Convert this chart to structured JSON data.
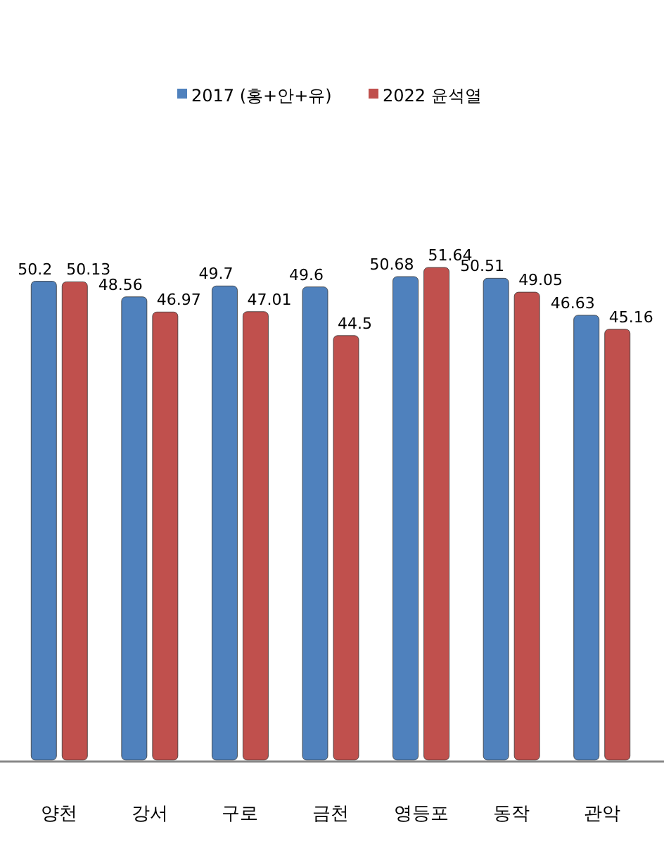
{
  "chart_data": {
    "type": "bar",
    "categories": [
      "양천",
      "강서",
      "구로",
      "금천",
      "영등포",
      "동작",
      "관악"
    ],
    "series": [
      {
        "name": "2017 (홍+안+유)",
        "color": "#4f81bd",
        "values": [
          50.2,
          48.56,
          49.7,
          49.6,
          50.68,
          50.51,
          46.63
        ]
      },
      {
        "name": "2022 윤석열",
        "color": "#c0504d",
        "values": [
          50.13,
          46.97,
          47.01,
          44.5,
          51.64,
          49.05,
          45.16
        ]
      }
    ],
    "data_labels": true,
    "legend": "top",
    "grid": false
  }
}
